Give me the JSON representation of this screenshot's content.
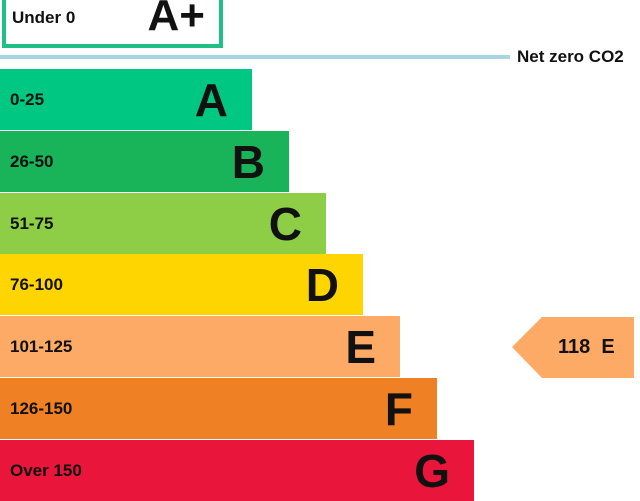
{
  "chart_data": {
    "type": "bar",
    "top_band": {
      "range": "Under 0",
      "letter": "A+",
      "color": "#1fbf85"
    },
    "net_zero_label": "Net zero CO2",
    "net_zero_color": "#a8d4e4",
    "bands": [
      {
        "range": "0-25",
        "letter": "A",
        "color": "#00c781"
      },
      {
        "range": "26-50",
        "letter": "B",
        "color": "#19b459"
      },
      {
        "range": "51-75",
        "letter": "C",
        "color": "#8dce46"
      },
      {
        "range": "76-100",
        "letter": "D",
        "color": "#ffd500"
      },
      {
        "range": "101-125",
        "letter": "E",
        "color": "#fcaa65"
      },
      {
        "range": "126-150",
        "letter": "F",
        "color": "#ef8023"
      },
      {
        "range": "Over 150",
        "letter": "G",
        "color": "#e9153b"
      }
    ],
    "current": {
      "value": "118",
      "letter": "E",
      "color": "#fcaa65"
    }
  }
}
